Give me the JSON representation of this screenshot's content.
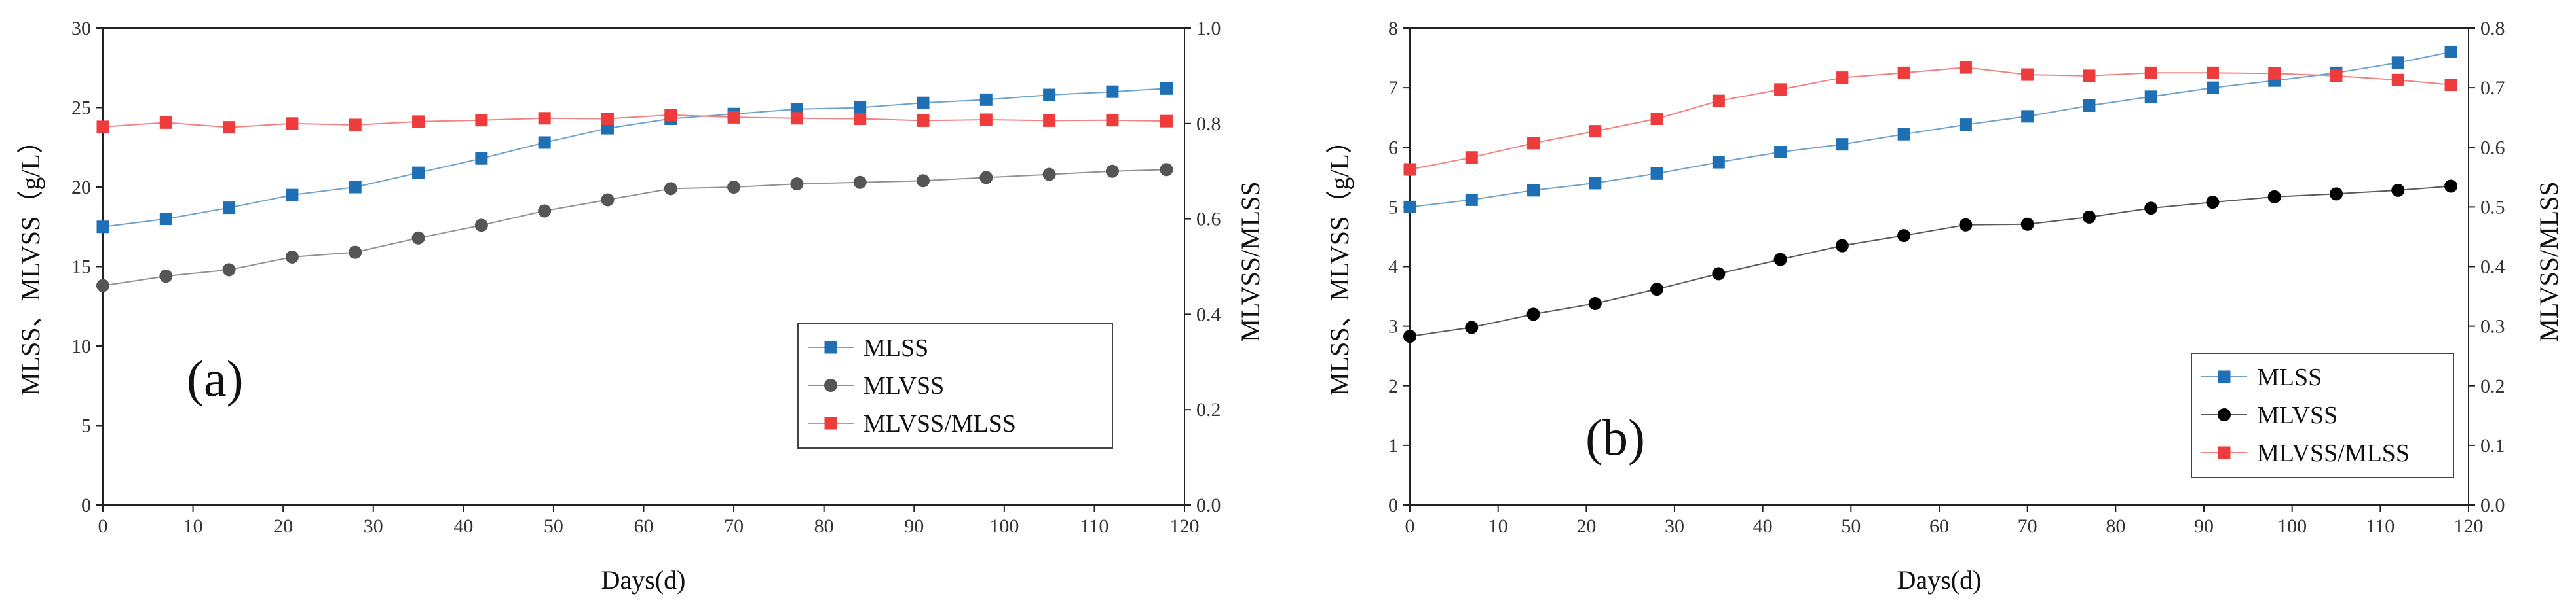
{
  "chart_data": [
    {
      "type": "line",
      "panel_label": "(a)",
      "xlabel": "Days(d)",
      "ylabel": "MLSS、MLVSS（g/L）",
      "y2label": "MLVSS/MLSS",
      "xlim": [
        0,
        120
      ],
      "ylim": [
        0,
        30
      ],
      "y2lim": [
        0,
        1.0
      ],
      "x_ticks": [
        "0",
        "10",
        "20",
        "30",
        "40",
        "50",
        "60",
        "70",
        "80",
        "90",
        "100",
        "110",
        "120"
      ],
      "y_ticks": [
        "0",
        "5",
        "10",
        "15",
        "20",
        "25",
        "30"
      ],
      "y2_ticks": [
        "0.0",
        "0.2",
        "0.4",
        "0.6",
        "0.8",
        "1.0"
      ],
      "grid": false,
      "legend_position": "center-right",
      "x": [
        0,
        7,
        14,
        21,
        28,
        35,
        42,
        49,
        56,
        63,
        70,
        77,
        84,
        91,
        98,
        105,
        112,
        118
      ],
      "series": [
        {
          "name": "MLSS",
          "axis": "left",
          "marker": "square",
          "color": "#1f6fb4",
          "values": [
            17.5,
            18.0,
            18.7,
            19.5,
            20.0,
            20.9,
            21.8,
            22.8,
            23.7,
            24.3,
            24.6,
            24.9,
            25.0,
            25.3,
            25.5,
            25.8,
            26.0,
            26.2
          ]
        },
        {
          "name": "MLVSS",
          "axis": "left",
          "marker": "circle",
          "color": "#555555",
          "values": [
            13.8,
            14.4,
            14.8,
            15.6,
            15.9,
            16.8,
            17.6,
            18.5,
            19.2,
            19.9,
            20.0,
            20.2,
            20.3,
            20.4,
            20.6,
            20.8,
            21.0,
            21.1
          ]
        },
        {
          "name": "MLVSS/MLSS",
          "axis": "right",
          "marker": "square",
          "color": "#ee3b3b",
          "values": [
            0.793,
            0.802,
            0.792,
            0.8,
            0.797,
            0.804,
            0.807,
            0.811,
            0.81,
            0.818,
            0.813,
            0.811,
            0.81,
            0.806,
            0.808,
            0.806,
            0.807,
            0.805
          ]
        }
      ]
    },
    {
      "type": "line",
      "panel_label": "(b)",
      "xlabel": "Days(d)",
      "ylabel": "MLSS、MLVSS（g/L）",
      "y2label": "MLVSS/MLSS",
      "xlim": [
        0,
        120
      ],
      "ylim": [
        0,
        8
      ],
      "y2lim": [
        0,
        0.8
      ],
      "x_ticks": [
        "0",
        "10",
        "20",
        "30",
        "40",
        "50",
        "60",
        "70",
        "80",
        "90",
        "100",
        "110",
        "120"
      ],
      "y_ticks": [
        "0",
        "1",
        "2",
        "3",
        "4",
        "5",
        "6",
        "7",
        "8"
      ],
      "y2_ticks": [
        "0.0",
        "0.1",
        "0.2",
        "0.3",
        "0.4",
        "0.5",
        "0.6",
        "0.7",
        "0.8"
      ],
      "grid": false,
      "legend_position": "bottom-right",
      "x": [
        0,
        7,
        14,
        21,
        28,
        35,
        42,
        49,
        56,
        63,
        70,
        77,
        84,
        91,
        98,
        105,
        112,
        118
      ],
      "series": [
        {
          "name": "MLSS",
          "axis": "left",
          "marker": "square",
          "color": "#1f6fb4",
          "values": [
            5.0,
            5.12,
            5.28,
            5.4,
            5.56,
            5.75,
            5.92,
            6.05,
            6.22,
            6.38,
            6.52,
            6.7,
            6.85,
            7.0,
            7.12,
            7.25,
            7.42,
            7.6
          ]
        },
        {
          "name": "MLVSS",
          "axis": "left",
          "marker": "circle",
          "color": "#000000",
          "values": [
            2.83,
            2.98,
            3.2,
            3.38,
            3.62,
            3.88,
            4.12,
            4.35,
            4.52,
            4.7,
            4.71,
            4.83,
            4.98,
            5.08,
            5.17,
            5.22,
            5.28,
            5.35
          ]
        },
        {
          "name": "MLVSS/MLSS",
          "axis": "right",
          "marker": "square",
          "color": "#ee3b3b",
          "values": [
            0.563,
            0.583,
            0.607,
            0.627,
            0.648,
            0.678,
            0.697,
            0.717,
            0.725,
            0.734,
            0.722,
            0.72,
            0.725,
            0.725,
            0.724,
            0.72,
            0.713,
            0.705
          ]
        }
      ]
    }
  ]
}
